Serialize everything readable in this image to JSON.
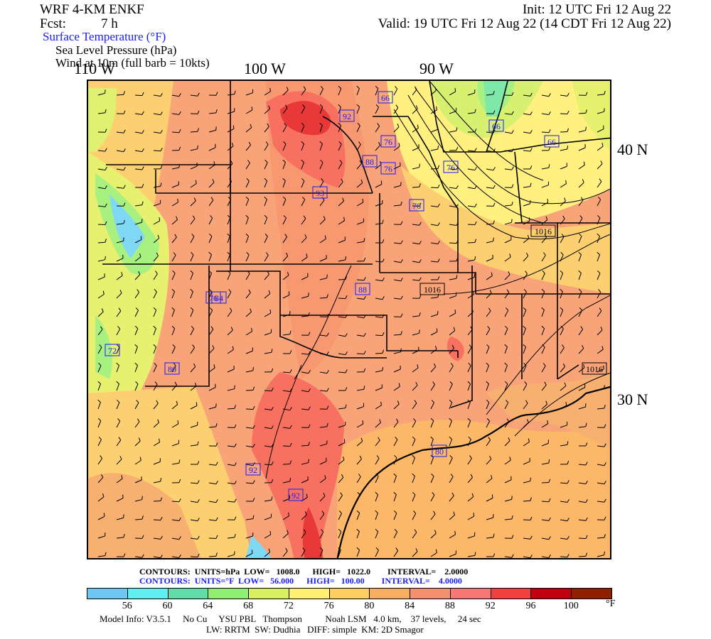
{
  "header": {
    "model": "WRF 4-KM ENKF",
    "fcst_label": "Fcst:",
    "fcst_value": "7 h",
    "init": "Init: 12 UTC Fri 12 Aug 22",
    "valid": "Valid: 19 UTC Fri 12 Aug 22 (14 CDT Fri 12 Aug 22)",
    "field1": "Surface Temperature (°F)",
    "field2": "Sea Level Pressure (hPa)",
    "field3": "Wind at 10m (full barb = 10kts)"
  },
  "map": {
    "lon_labels": [
      "110 W",
      "100 W",
      "90 W"
    ],
    "lat_labels": [
      "40 N",
      "30 N"
    ],
    "temp_labels": [
      "66",
      "92",
      "66",
      "76",
      "88",
      "76",
      "76",
      "76",
      "93",
      "66",
      "76",
      "88",
      "84",
      "72",
      "80",
      "92",
      "92",
      "80"
    ],
    "pressure_labels": [
      "1016",
      "1016",
      "1016"
    ],
    "colors": {
      "t56": "#7fd8f4",
      "t60": "#6ff0e8",
      "t64": "#7ee8a8",
      "t68": "#a8f080",
      "t72": "#e0f070",
      "t76": "#fff080",
      "t80": "#fcd070",
      "t84": "#f8b070",
      "t88": "#f89870",
      "t92": "#f87060",
      "t96": "#e83838",
      "t100": "#c00010",
      "t104": "#902000"
    }
  },
  "footer": {
    "contours_slp": "CONTOURS:  UNITS=hPa  LOW=   1008.0      HIGH=   1022.0        INTERVAL=    2.0000",
    "contours_temp": "CONTOURS:  UNITS=°F  LOW=   56.000      HIGH=   100.00        INTERVAL=    4.0000",
    "colorbar_ticks": [
      "56",
      "60",
      "64",
      "68",
      "72",
      "76",
      "80",
      "84",
      "88",
      "92",
      "96",
      "100"
    ],
    "colorbar_unit": "°F",
    "colorbar_colors": [
      "#6cc8f0",
      "#60f0f0",
      "#60e0a8",
      "#90f070",
      "#d8f060",
      "#fff070",
      "#fcd060",
      "#f8b060",
      "#f89070",
      "#f87878",
      "#f04040",
      "#c00010",
      "#902000"
    ],
    "model_info": "Model Info: V3.5.1     No Cu     YSU PBL   Thompson          Noah LSM   4.0 km,    37 levels,     24 sec",
    "model_info2": "LW: RRTM  SW: Dudhia   DIFF: simple  KM: 2D Smagor"
  }
}
